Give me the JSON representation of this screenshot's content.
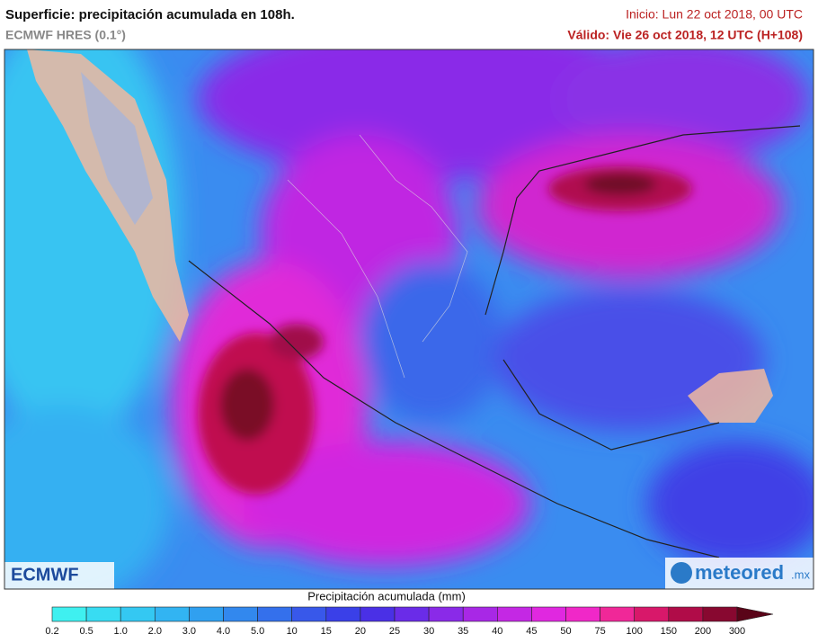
{
  "header": {
    "title": "Superficie: precipitación acumulada en 108h.",
    "subtitle": "ECMWF HRES (0.1°)",
    "init": "Inicio: Lun 22 oct 2018, 00 UTC",
    "valid": "Válido: Vie 26 oct 2018, 12 UTC (H+108)"
  },
  "legend": {
    "title": "Precipitación acumulada (mm)",
    "ticks": [
      "0.2",
      "0.5",
      "1.0",
      "2.0",
      "3.0",
      "4.0",
      "5.0",
      "10",
      "15",
      "20",
      "25",
      "30",
      "35",
      "40",
      "45",
      "50",
      "75",
      "100",
      "150",
      "200",
      "300"
    ],
    "colors": [
      "#3ff0f0",
      "#38dcf2",
      "#34c8f2",
      "#32b4f2",
      "#30a0f0",
      "#3288ee",
      "#3470ec",
      "#3858ea",
      "#3a40e8",
      "#4a30e6",
      "#6a2ce8",
      "#8a2ae8",
      "#a828e6",
      "#c428e4",
      "#e028e0",
      "#f028c8",
      "#f02898",
      "#d8186a",
      "#b00c48",
      "#880830",
      "#5a0418"
    ]
  },
  "logos": {
    "left": "ECMWF",
    "right": "meteored",
    "right_suffix": ".mx"
  }
}
